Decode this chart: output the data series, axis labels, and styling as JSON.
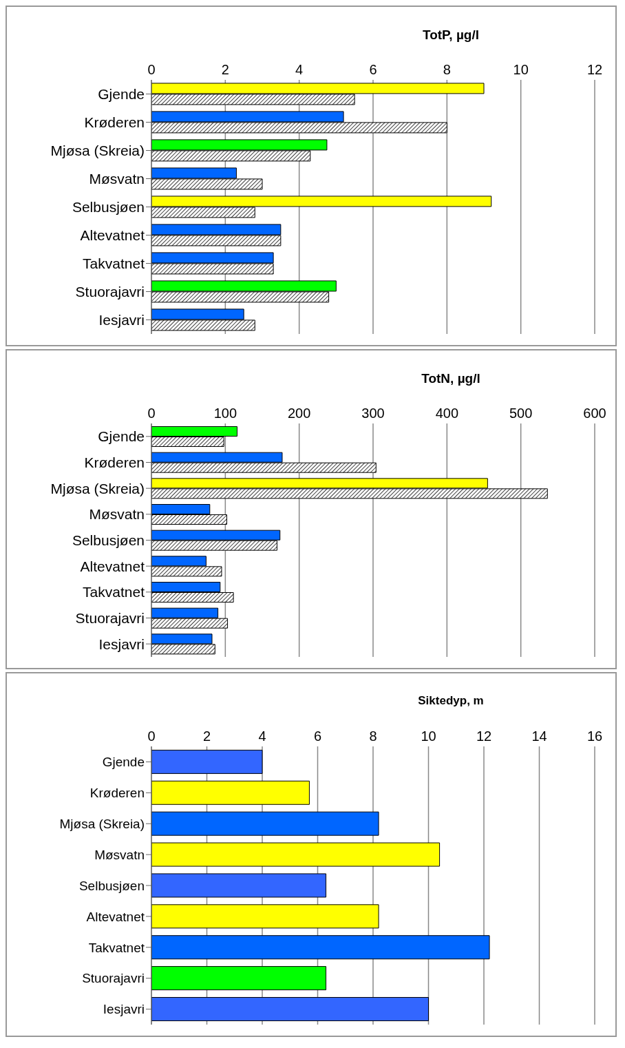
{
  "chart_data": [
    {
      "type": "bar",
      "orientation": "horizontal",
      "title": "TotP, µg/l",
      "categories": [
        "Gjende",
        "Krøderen",
        "Mjøsa (Skreia)",
        "Møsvatn",
        "Selbusjøen",
        "Altevatnet",
        "Takvatnet",
        "Stuorajavri",
        "Iesjavri"
      ],
      "series": [
        {
          "colors": [
            "#ffff00",
            "#0066ff",
            "#00ff00",
            "#0066ff",
            "#ffff00",
            "#0066ff",
            "#0066ff",
            "#00ff00",
            "#0066ff"
          ],
          "values": [
            9.0,
            5.2,
            4.75,
            2.3,
            9.2,
            3.5,
            3.3,
            5.0,
            2.5
          ]
        },
        {
          "color": "#000000",
          "values": [
            5.5,
            8.0,
            4.3,
            3.0,
            2.8,
            3.5,
            3.3,
            4.8,
            2.8
          ]
        }
      ],
      "xlim": [
        0,
        12
      ],
      "xticks": [
        0,
        2,
        4,
        6,
        8,
        10,
        12
      ],
      "grid": "x"
    },
    {
      "type": "bar",
      "orientation": "horizontal",
      "title": "TotN, µg/l",
      "categories": [
        "Gjende",
        "Krøderen",
        "Mjøsa (Skreia)",
        "Møsvatn",
        "Selbusjøen",
        "Altevatnet",
        "Takvatnet",
        "Stuorajavri",
        "Iesjavri"
      ],
      "series": [
        {
          "colors": [
            "#00ff00",
            "#0066ff",
            "#ffff00",
            "#0066ff",
            "#0066ff",
            "#0066ff",
            "#0066ff",
            "#0066ff",
            "#0066ff"
          ],
          "values": [
            116,
            177,
            455,
            79,
            174,
            74,
            93,
            90,
            82
          ]
        },
        {
          "color": "#000000",
          "values": [
            98,
            304,
            536,
            102,
            170,
            95,
            111,
            103,
            86
          ]
        }
      ],
      "xlim": [
        0,
        600
      ],
      "xticks": [
        0,
        100,
        200,
        300,
        400,
        500,
        600
      ],
      "grid": "x"
    },
    {
      "type": "bar",
      "orientation": "horizontal",
      "title": "Siktedyp, m",
      "categories": [
        "Gjende",
        "Krøderen",
        "Mjøsa (Skreia)",
        "Møsvatn",
        "Selbusjøen",
        "Altevatnet",
        "Takvatnet",
        "Stuorajavri",
        "Iesjavri"
      ],
      "series": [
        {
          "colors": [
            "#3366ff",
            "#ffff00",
            "#0066ff",
            "#ffff00",
            "#3366ff",
            "#ffff00",
            "#0066ff",
            "#00ff00",
            "#3366ff"
          ],
          "values": [
            4.0,
            5.7,
            8.2,
            10.4,
            6.3,
            8.2,
            12.2,
            6.3,
            10.0
          ]
        }
      ],
      "xlim": [
        0,
        16
      ],
      "xticks": [
        0,
        2,
        4,
        6,
        8,
        10,
        12,
        14,
        16
      ],
      "grid": "x"
    }
  ]
}
